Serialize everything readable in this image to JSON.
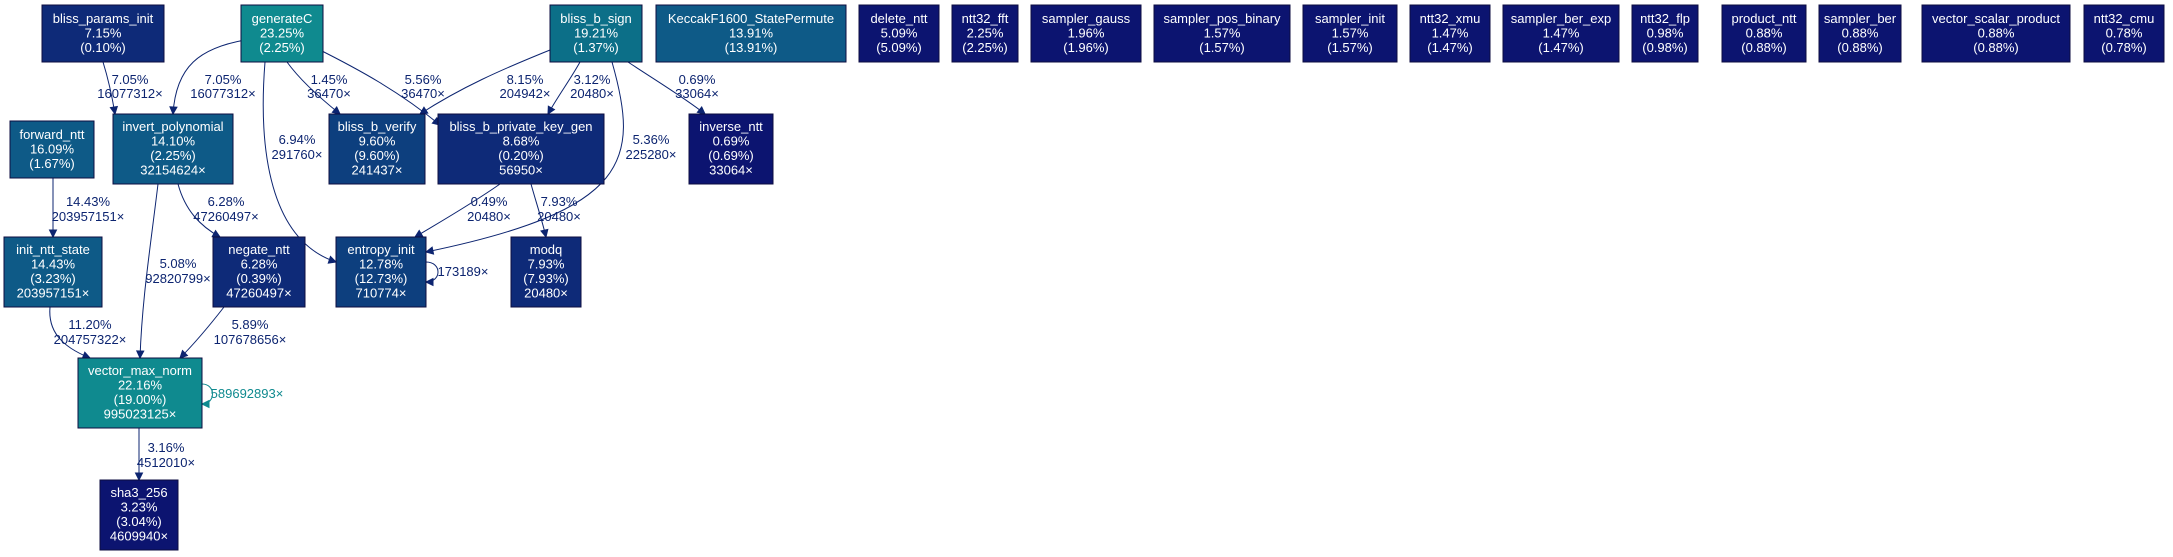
{
  "palette": {
    "teal": "#0f8a8f",
    "teal_dark": "#0c6f88",
    "blue_mid": "#0e5a87",
    "blue": "#0d3f7e",
    "navy": "#0e2a78",
    "navy_dark": "#0c1470",
    "edge_navy": "#0c2470",
    "edge_teal": "#0f8a8f"
  },
  "nodes": [
    {
      "id": "bliss_params_init",
      "lines": [
        "bliss_params_init",
        "7.15%",
        "(0.10%)"
      ],
      "color": "navy"
    },
    {
      "id": "generateC",
      "lines": [
        "generateC",
        "23.25%",
        "(2.25%)"
      ],
      "color": "teal"
    },
    {
      "id": "bliss_b_sign",
      "lines": [
        "bliss_b_sign",
        "19.21%",
        "(1.37%)"
      ],
      "color": "teal_dark"
    },
    {
      "id": "KeccakF1600_StatePermute",
      "lines": [
        "KeccakF1600_StatePermute",
        "13.91%",
        "(13.91%)"
      ],
      "color": "blue_mid"
    },
    {
      "id": "delete_ntt",
      "lines": [
        "delete_ntt",
        "5.09%",
        "(5.09%)"
      ],
      "color": "navy_dark"
    },
    {
      "id": "ntt32_fft",
      "lines": [
        "ntt32_fft",
        "2.25%",
        "(2.25%)"
      ],
      "color": "navy_dark"
    },
    {
      "id": "sampler_gauss",
      "lines": [
        "sampler_gauss",
        "1.96%",
        "(1.96%)"
      ],
      "color": "navy_dark"
    },
    {
      "id": "sampler_pos_binary",
      "lines": [
        "sampler_pos_binary",
        "1.57%",
        "(1.57%)"
      ],
      "color": "navy_dark"
    },
    {
      "id": "sampler_init",
      "lines": [
        "sampler_init",
        "1.57%",
        "(1.57%)"
      ],
      "color": "navy_dark"
    },
    {
      "id": "ntt32_xmu",
      "lines": [
        "ntt32_xmu",
        "1.47%",
        "(1.47%)"
      ],
      "color": "navy_dark"
    },
    {
      "id": "sampler_ber_exp",
      "lines": [
        "sampler_ber_exp",
        "1.47%",
        "(1.47%)"
      ],
      "color": "navy_dark"
    },
    {
      "id": "ntt32_flp",
      "lines": [
        "ntt32_flp",
        "0.98%",
        "(0.98%)"
      ],
      "color": "navy_dark"
    },
    {
      "id": "product_ntt",
      "lines": [
        "product_ntt",
        "0.88%",
        "(0.88%)"
      ],
      "color": "navy_dark"
    },
    {
      "id": "sampler_ber",
      "lines": [
        "sampler_ber",
        "0.88%",
        "(0.88%)"
      ],
      "color": "navy_dark"
    },
    {
      "id": "vector_scalar_product",
      "lines": [
        "vector_scalar_product",
        "0.88%",
        "(0.88%)"
      ],
      "color": "navy_dark"
    },
    {
      "id": "ntt32_cmu",
      "lines": [
        "ntt32_cmu",
        "0.78%",
        "(0.78%)"
      ],
      "color": "navy_dark"
    },
    {
      "id": "forward_ntt",
      "lines": [
        "forward_ntt",
        "16.09%",
        "(1.67%)"
      ],
      "color": "blue_mid"
    },
    {
      "id": "invert_polynomial",
      "lines": [
        "invert_polynomial",
        "14.10%",
        "(2.25%)",
        "32154624×"
      ],
      "color": "blue_mid"
    },
    {
      "id": "bliss_b_verify",
      "lines": [
        "bliss_b_verify",
        "9.60%",
        "(9.60%)",
        "241437×"
      ],
      "color": "blue"
    },
    {
      "id": "bliss_b_private_key_gen",
      "lines": [
        "bliss_b_private_key_gen",
        "8.68%",
        "(0.20%)",
        "56950×"
      ],
      "color": "navy"
    },
    {
      "id": "inverse_ntt",
      "lines": [
        "inverse_ntt",
        "0.69%",
        "(0.69%)",
        "33064×"
      ],
      "color": "navy_dark"
    },
    {
      "id": "init_ntt_state",
      "lines": [
        "init_ntt_state",
        "14.43%",
        "(3.23%)",
        "203957151×"
      ],
      "color": "blue_mid"
    },
    {
      "id": "negate_ntt",
      "lines": [
        "negate_ntt",
        "6.28%",
        "(0.39%)",
        "47260497×"
      ],
      "color": "navy"
    },
    {
      "id": "entropy_init",
      "lines": [
        "entropy_init",
        "12.78%",
        "(12.73%)",
        "710774×"
      ],
      "color": "blue"
    },
    {
      "id": "modq",
      "lines": [
        "modq",
        "7.93%",
        "(7.93%)",
        "20480×"
      ],
      "color": "navy"
    },
    {
      "id": "vector_max_norm",
      "lines": [
        "vector_max_norm",
        "22.16%",
        "(19.00%)",
        "995023125×"
      ],
      "color": "teal"
    },
    {
      "id": "sha3_256",
      "lines": [
        "sha3_256",
        "3.23%",
        "(3.04%)",
        "4609940×"
      ],
      "color": "navy_dark"
    }
  ],
  "edges": [
    {
      "id": "bliss_params_init-invert_polynomial",
      "labels": [
        "7.05%",
        "16077312×"
      ],
      "color": "edge_navy"
    },
    {
      "id": "generateC-invert_polynomial",
      "labels": [
        "7.05%",
        "16077312×"
      ],
      "color": "edge_navy"
    },
    {
      "id": "generateC-bliss_b_verify",
      "labels": [
        "1.45%",
        "36470×"
      ],
      "color": "edge_navy"
    },
    {
      "id": "generateC-bliss_b_private_key_gen",
      "labels": [
        "5.56%",
        "36470×"
      ],
      "color": "edge_navy"
    },
    {
      "id": "generateC-entropy_init",
      "labels": [
        "6.94%",
        "291760×"
      ],
      "color": "edge_navy"
    },
    {
      "id": "bliss_b_sign-bliss_b_verify",
      "labels": [
        "8.15%",
        "204942×"
      ],
      "color": "edge_navy"
    },
    {
      "id": "bliss_b_sign-bliss_b_private_key_gen",
      "labels": [
        "3.12%",
        "20480×"
      ],
      "color": "edge_navy"
    },
    {
      "id": "bliss_b_sign-inverse_ntt",
      "labels": [
        "0.69%",
        "33064×"
      ],
      "color": "edge_navy"
    },
    {
      "id": "bliss_b_sign-entropy_init",
      "labels": [
        "5.36%",
        "225280×"
      ],
      "color": "edge_navy"
    },
    {
      "id": "forward_ntt-init_ntt_state",
      "labels": [
        "14.43%",
        "203957151×"
      ],
      "color": "edge_navy"
    },
    {
      "id": "invert_polynomial-negate_ntt",
      "labels": [
        "6.28%",
        "47260497×"
      ],
      "color": "edge_navy"
    },
    {
      "id": "invert_polynomial-vector_max_norm",
      "labels": [
        "5.08%",
        "92820799×"
      ],
      "color": "edge_navy"
    },
    {
      "id": "bliss_b_private_key_gen-entropy_init",
      "labels": [
        "0.49%",
        "20480×"
      ],
      "color": "edge_navy"
    },
    {
      "id": "bliss_b_private_key_gen-modq",
      "labels": [
        "7.93%",
        "20480×"
      ],
      "color": "edge_navy"
    },
    {
      "id": "entropy_init-entropy_init",
      "labels": [
        "173189×"
      ],
      "color": "edge_navy"
    },
    {
      "id": "init_ntt_state-vector_max_norm",
      "labels": [
        "11.20%",
        "204757322×"
      ],
      "color": "edge_navy"
    },
    {
      "id": "negate_ntt-vector_max_norm",
      "labels": [
        "5.89%",
        "107678656×"
      ],
      "color": "edge_navy"
    },
    {
      "id": "vector_max_norm-vector_max_norm",
      "labels": [
        "589692893×"
      ],
      "color": "edge_teal"
    },
    {
      "id": "vector_max_norm-sha3_256",
      "labels": [
        "3.16%",
        "4512010×"
      ],
      "color": "edge_navy"
    }
  ]
}
